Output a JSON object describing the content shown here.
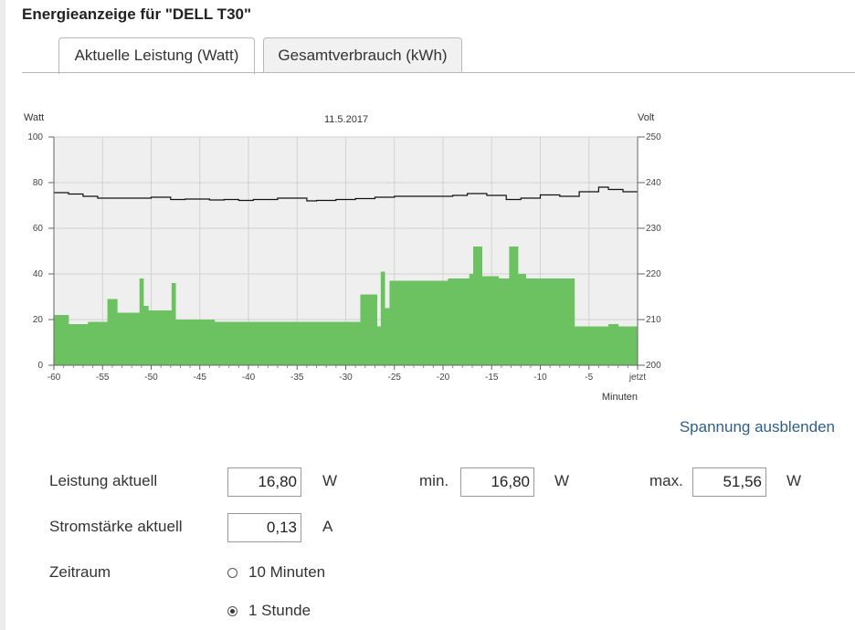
{
  "page": {
    "title": "Energieanzeige für \"DELL T30\""
  },
  "tabs": [
    {
      "label": "Aktuelle Leistung (Watt)",
      "active": true
    },
    {
      "label": "Gesamtverbrauch (kWh)",
      "active": false
    }
  ],
  "chart_data": {
    "type": "area",
    "title": "11.5.2017",
    "xlabel": "Minuten",
    "ylabel": "Watt",
    "y2label": "Volt",
    "xlim": [
      -60,
      0
    ],
    "ylim": [
      0,
      100
    ],
    "y2lim": [
      200,
      250
    ],
    "x_ticks": [
      -60,
      -55,
      -50,
      -45,
      -40,
      -35,
      -30,
      -25,
      -20,
      -15,
      -10,
      -5,
      0
    ],
    "x_tick_labels": [
      "-60",
      "-55",
      "-50",
      "-45",
      "-40",
      "-35",
      "-30",
      "-25",
      "-20",
      "-15",
      "-10",
      "-5",
      "jetzt"
    ],
    "y_ticks": [
      0,
      20,
      40,
      60,
      80,
      100
    ],
    "y2_ticks": [
      200,
      210,
      220,
      230,
      240,
      250
    ],
    "grid": true,
    "colors": {
      "power": "#6cc160",
      "voltage": "#111111",
      "plot_bg": "#efefef"
    },
    "series": [
      {
        "axis": "left",
        "style": "step-area",
        "x": [
          -60,
          -58.5,
          -56.5,
          -54.5,
          -53.5,
          -51.5,
          -51.2,
          -50.8,
          -50.3,
          -48.3,
          -47.9,
          -47.5,
          -43.5,
          -43,
          -41,
          -37,
          -33,
          -30.5,
          -29.5,
          -28.5,
          -26.8,
          -26.4,
          -26,
          -25.5,
          -22.5,
          -19.5,
          -18.5,
          -17.3,
          -16.9,
          -16,
          -14.3,
          -13.2,
          -12.3,
          -11.5,
          -9.5,
          -8.5,
          -6.5,
          -3,
          -2,
          0
        ],
        "y": [
          22,
          18,
          19,
          29,
          23,
          23,
          38,
          26,
          24,
          24,
          36,
          20,
          19,
          19,
          19,
          19,
          19,
          19,
          19,
          31,
          17,
          41,
          25,
          37,
          37,
          38,
          38,
          40,
          52,
          39,
          38,
          52,
          40,
          38,
          38,
          38,
          17,
          18,
          17,
          17
        ]
      },
      {
        "axis": "right",
        "style": "step-line",
        "x": [
          -60,
          -58.5,
          -57,
          -55.5,
          -53,
          -50,
          -48,
          -46.5,
          -44,
          -42.5,
          -41,
          -39.5,
          -37,
          -35,
          -34,
          -33,
          -31,
          -29,
          -27,
          -25,
          -22,
          -19,
          -17.5,
          -15.5,
          -13.5,
          -12,
          -10,
          -8,
          -6,
          -5.5,
          -4,
          -3,
          -1.5,
          0
        ],
        "y": [
          237.8,
          237.5,
          237.0,
          236.6,
          236.6,
          236.8,
          236.3,
          236.4,
          236.2,
          236.3,
          236.1,
          236.3,
          236.6,
          236.6,
          236.0,
          236.1,
          236.3,
          236.5,
          236.8,
          237.0,
          237.0,
          237.2,
          237.6,
          237.2,
          236.3,
          236.6,
          237.3,
          237.0,
          238.0,
          238.0,
          239.0,
          238.5,
          238.0,
          238.0
        ]
      }
    ]
  },
  "link": {
    "voltage_toggle": "Spannung ausblenden"
  },
  "readings": {
    "power_label": "Leistung aktuell",
    "power_value": "16,80",
    "power_unit": "W",
    "min_label": "min.",
    "min_value": "16,80",
    "min_unit": "W",
    "max_label": "max.",
    "max_value": "51,56",
    "max_unit": "W",
    "current_label": "Stromstärke aktuell",
    "current_value": "0,13",
    "current_unit": "A"
  },
  "timerange": {
    "label": "Zeitraum",
    "options": [
      {
        "label": "10 Minuten",
        "checked": false
      },
      {
        "label": "1 Stunde",
        "checked": true
      }
    ]
  }
}
